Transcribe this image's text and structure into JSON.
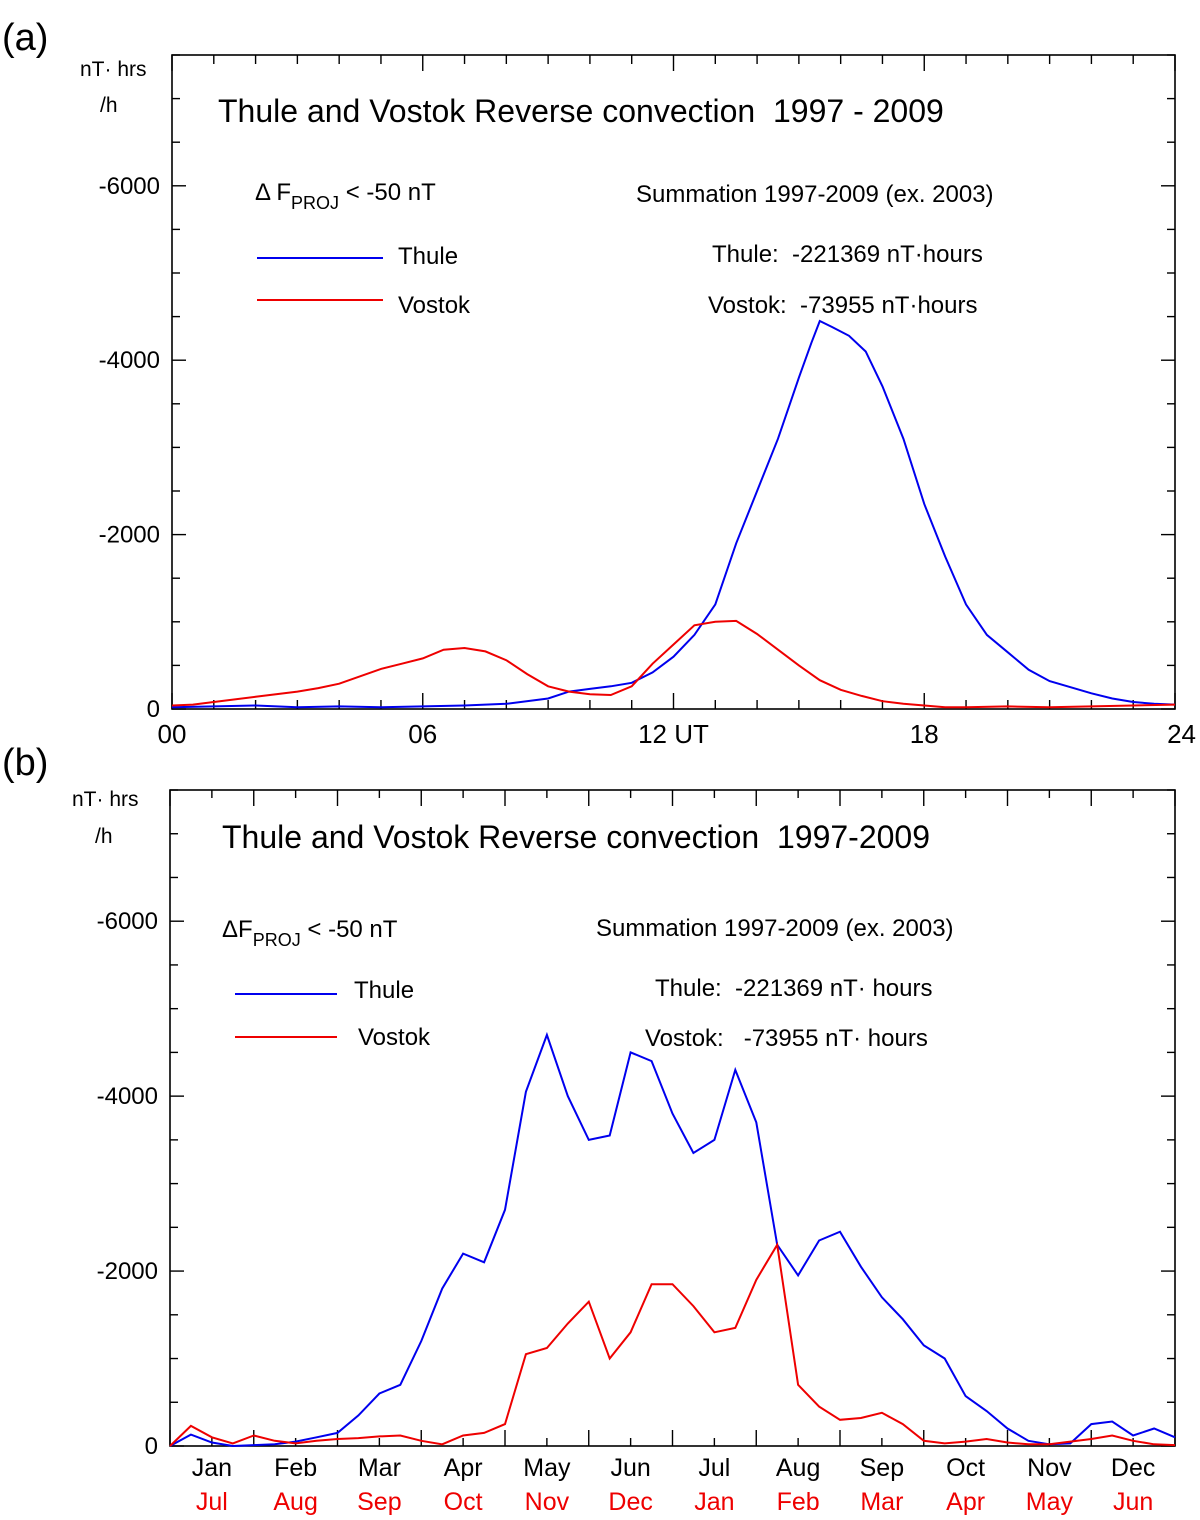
{
  "chart_data": [
    {
      "panel": "(a)",
      "type": "line",
      "title": "Thule and Vostok Reverse convection  1997 - 2009",
      "ylabel_line1": "nT· hrs",
      "ylabel_line2": "/h",
      "criterion": {
        "prefix": "Δ F",
        "sub": "PROJ",
        "suffix": " < -50 nT"
      },
      "summation": "Summation 1997-2009 (ex. 2003)",
      "totals": [
        "Thule:  -221369 nT·hours",
        "Vostok:  -73955 nT·hours"
      ],
      "ylim": [
        0,
        -7500
      ],
      "yticks": [
        0,
        -2000,
        -4000,
        -6000
      ],
      "ytick_labels": [
        "0",
        "-2000",
        "-4000",
        "-6000"
      ],
      "xlim": [
        0,
        24
      ],
      "xticks": [
        0,
        6,
        12,
        18,
        24
      ],
      "xtick_labels": [
        "00",
        "06",
        "12 UT",
        "18",
        "24"
      ],
      "series": [
        {
          "name": "Thule",
          "color": "#0000ee",
          "x": [
            0,
            1,
            2,
            3,
            4,
            5,
            6,
            7,
            8,
            9,
            9.5,
            10,
            10.5,
            11,
            11.5,
            12,
            12.5,
            13,
            13.5,
            14,
            14.5,
            15,
            15.3,
            15.5,
            15.8,
            16.2,
            16.6,
            17,
            17.5,
            18,
            18.5,
            19,
            19.5,
            20,
            20.5,
            21,
            21.5,
            22,
            22.5,
            23,
            23.5,
            24
          ],
          "y": [
            -20,
            -30,
            -40,
            -20,
            -30,
            -20,
            -30,
            -40,
            -60,
            -120,
            -200,
            -230,
            -260,
            -300,
            -420,
            -600,
            -850,
            -1200,
            -1900,
            -2500,
            -3100,
            -3800,
            -4200,
            -4450,
            -4380,
            -4280,
            -4100,
            -3700,
            -3100,
            -2350,
            -1750,
            -1200,
            -850,
            -650,
            -450,
            -320,
            -250,
            -180,
            -120,
            -80,
            -60,
            -50
          ]
        },
        {
          "name": "Vostok",
          "color": "#ee0000",
          "x": [
            0,
            0.5,
            1,
            2,
            3,
            3.5,
            4,
            5,
            5.5,
            6,
            6.5,
            7,
            7.5,
            8,
            8.5,
            9,
            9.5,
            10,
            10.5,
            11,
            11.5,
            12,
            12.5,
            13,
            13.5,
            14,
            14.5,
            15,
            15.5,
            16,
            16.5,
            17,
            17.5,
            18,
            18.5,
            19,
            20,
            21,
            22,
            23,
            24
          ],
          "y": [
            -40,
            -50,
            -80,
            -140,
            -200,
            -240,
            -290,
            -460,
            -520,
            -580,
            -680,
            -700,
            -660,
            -560,
            -400,
            -260,
            -200,
            -170,
            -160,
            -260,
            -520,
            -740,
            -960,
            -1000,
            -1010,
            -860,
            -680,
            -500,
            -330,
            -220,
            -150,
            -90,
            -60,
            -40,
            -20,
            -20,
            -30,
            -20,
            -30,
            -40,
            -50
          ]
        }
      ]
    },
    {
      "panel": "(b)",
      "type": "line",
      "title": "Thule and Vostok Reverse convection  1997-2009",
      "ylabel_line1": "nT· hrs",
      "ylabel_line2": "/h",
      "criterion": {
        "prefix": "ΔF",
        "sub": "PROJ",
        "suffix": " < -50 nT"
      },
      "summation": "Summation 1997-2009 (ex. 2003)",
      "totals": [
        "Thule:  -221369 nT· hours",
        "Vostok:   -73955 nT· hours"
      ],
      "ylim": [
        0,
        -7500
      ],
      "yticks": [
        0,
        -2000,
        -4000,
        -6000
      ],
      "ytick_labels": [
        "0",
        "-2000",
        "-4000",
        "-6000"
      ],
      "xlim": [
        0,
        12
      ],
      "month_labels_thule": [
        "Jan",
        "Feb",
        "Mar",
        "Apr",
        "May",
        "Jun",
        "Jul",
        "Aug",
        "Sep",
        "Oct",
        "Nov",
        "Dec"
      ],
      "month_labels_vostok": [
        "Jul",
        "Aug",
        "Sep",
        "Oct",
        "Nov",
        "Dec",
        "Jan",
        "Feb",
        "Mar",
        "Apr",
        "May",
        "Jun"
      ],
      "month_label_color_vostok": "#ee0000",
      "series": [
        {
          "name": "Thule",
          "color": "#0000ee",
          "x": [
            0,
            0.25,
            0.5,
            0.75,
            1,
            1.25,
            1.5,
            1.75,
            2,
            2.25,
            2.5,
            2.75,
            3,
            3.25,
            3.5,
            3.75,
            4,
            4.25,
            4.5,
            4.75,
            5,
            5.25,
            5.5,
            5.75,
            6,
            6.25,
            6.5,
            6.75,
            7,
            7.25,
            7.5,
            7.75,
            8,
            8.25,
            8.5,
            8.75,
            9,
            9.25,
            9.5,
            9.75,
            10,
            10.25,
            10.5,
            10.75,
            11,
            11.25,
            11.5,
            11.75,
            12
          ],
          "y": [
            0,
            -130,
            -40,
            0,
            -10,
            -20,
            -50,
            -100,
            -150,
            -350,
            -600,
            -700,
            -1200,
            -1800,
            -2200,
            -2100,
            -2700,
            -4050,
            -4700,
            -4000,
            -3500,
            -3550,
            -4500,
            -4400,
            -3800,
            -3350,
            -3500,
            -4300,
            -3700,
            -2300,
            -1950,
            -2350,
            -2450,
            -2050,
            -1700,
            -1450,
            -1150,
            -1000,
            -570,
            -400,
            -200,
            -60,
            -20,
            -30,
            -250,
            -280,
            -120,
            -200,
            -100
          ]
        },
        {
          "name": "Vostok",
          "color": "#ee0000",
          "x": [
            0,
            0.25,
            0.5,
            0.75,
            1,
            1.25,
            1.5,
            1.75,
            2,
            2.25,
            2.5,
            2.75,
            3,
            3.25,
            3.5,
            3.75,
            4,
            4.25,
            4.5,
            4.75,
            5,
            5.25,
            5.5,
            5.75,
            6,
            6.25,
            6.5,
            6.75,
            7,
            7.25,
            7.5,
            7.75,
            8,
            8.25,
            8.5,
            8.75,
            9,
            9.25,
            9.5,
            9.75,
            10,
            10.25,
            10.5,
            10.75,
            11,
            11.25,
            11.5,
            11.75,
            12
          ],
          "y": [
            0,
            -230,
            -100,
            -30,
            -120,
            -60,
            -30,
            -60,
            -80,
            -90,
            -110,
            -120,
            -60,
            -20,
            -120,
            -150,
            -250,
            -1050,
            -1120,
            -1400,
            -1650,
            -1000,
            -1300,
            -1850,
            -1850,
            -1600,
            -1300,
            -1350,
            -1900,
            -2300,
            -700,
            -450,
            -300,
            -320,
            -380,
            -250,
            -60,
            -30,
            -50,
            -80,
            -40,
            -20,
            -20,
            -50,
            -80,
            -120,
            -60,
            -20,
            -10
          ]
        }
      ]
    }
  ]
}
